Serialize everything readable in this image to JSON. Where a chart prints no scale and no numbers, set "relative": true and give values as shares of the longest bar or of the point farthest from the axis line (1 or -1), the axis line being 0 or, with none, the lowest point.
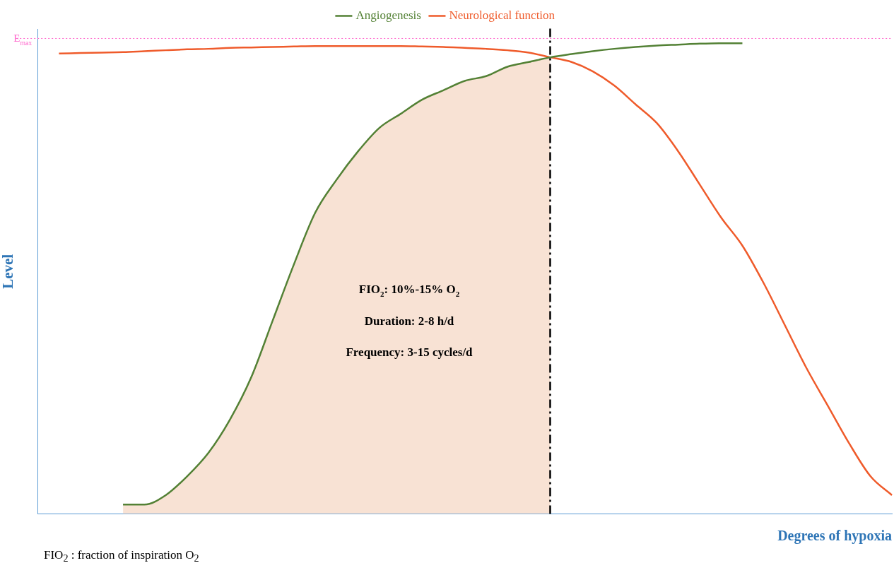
{
  "chart_data": {
    "type": "line",
    "xlabel": "Degrees of hypoxia",
    "ylabel": "Level",
    "relative": true,
    "legend": "top",
    "marker": "none",
    "line_style": "solid",
    "categories": [
      null,
      null,
      null,
      null,
      null,
      null,
      null,
      null,
      null,
      null,
      null,
      null,
      null,
      null,
      null,
      null,
      null,
      null,
      null,
      null,
      null,
      null,
      null,
      null,
      null,
      null,
      null,
      null,
      null,
      null,
      null,
      null,
      null,
      null,
      null,
      null,
      null,
      null,
      null,
      null,
      null
    ],
    "series": [
      {
        "type": "area",
        "color": "#f8e2d4",
        "values": [
          null,
          null,
          null,
          null,
          0.02,
          0.02,
          0.04,
          0.08,
          0.13,
          0.2,
          0.29,
          0.41,
          0.53,
          0.64,
          0.71,
          0.77,
          0.82,
          0.85,
          0.88,
          0.9,
          0.92,
          0.93,
          0.95,
          0.96,
          0.97,
          null,
          null,
          null,
          null,
          null,
          null,
          null,
          null,
          null,
          null,
          null,
          null,
          null,
          null,
          null,
          null
        ]
      },
      {
        "name": "Angiogenesis",
        "color": "#538135",
        "values": [
          null,
          null,
          null,
          null,
          0.02,
          0.02,
          0.04,
          0.08,
          0.13,
          0.2,
          0.29,
          0.41,
          0.53,
          0.64,
          0.71,
          0.77,
          0.82,
          0.85,
          0.88,
          0.9,
          0.92,
          0.93,
          0.95,
          0.96,
          0.97,
          0.977,
          0.983,
          0.988,
          0.992,
          0.995,
          0.997,
          0.999,
          1.0,
          1.0,
          null,
          null,
          null,
          null,
          null,
          null,
          null
        ]
      },
      {
        "name": "Neurological function",
        "color": "#ef5b2b",
        "values": [
          null,
          0.978,
          0.979,
          0.98,
          0.981,
          0.983,
          0.985,
          0.987,
          0.988,
          0.99,
          0.991,
          0.992,
          0.993,
          0.994,
          0.994,
          0.994,
          0.994,
          0.994,
          0.993,
          0.992,
          0.99,
          0.988,
          0.985,
          0.98,
          0.97,
          0.96,
          0.94,
          0.91,
          0.87,
          0.83,
          0.77,
          0.7,
          0.63,
          0.57,
          0.49,
          0.4,
          0.31,
          0.23,
          0.15,
          0.08,
          0.04
        ]
      }
    ],
    "ref_lines": [
      {
        "axis": "y",
        "value": 1.01,
        "label": "E$_{max}$",
        "color": "#ff66cc",
        "line_style": "dotted"
      }
    ],
    "annotations": [
      "FIO$_{2}$: 10%-15% O$_{2}$",
      "Duration: 2-8 h/d",
      "Frequency: 3-15 cycles/d",
      "FIO$_{2}$ : fraction of inspiration O$_{2}$"
    ]
  }
}
